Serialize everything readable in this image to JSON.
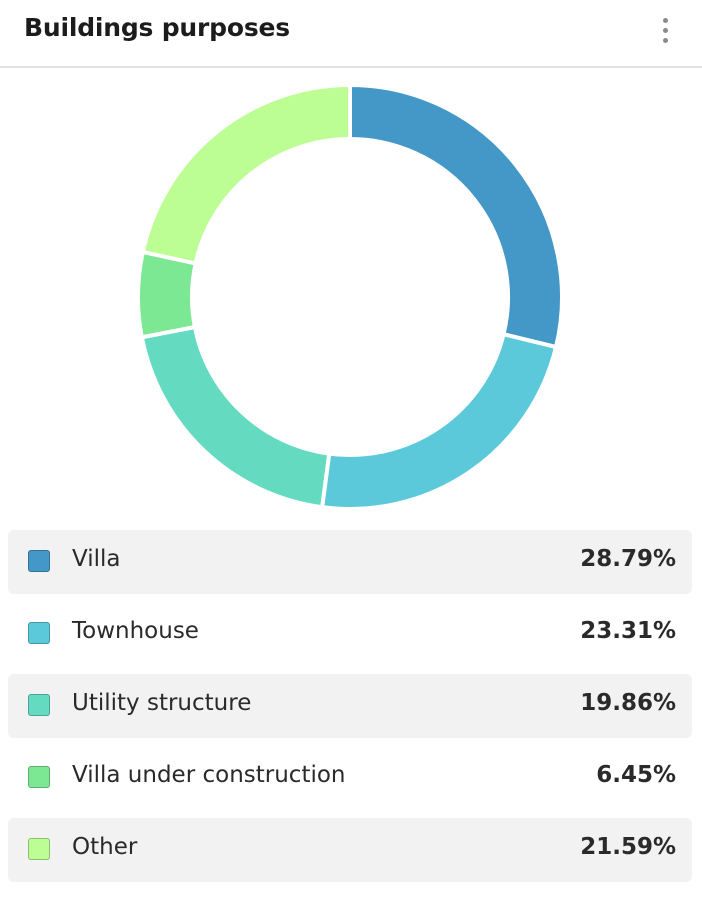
{
  "header": {
    "title": "Buildings purposes",
    "menu_icon": "more-vertical-icon"
  },
  "chart_data": {
    "type": "pie",
    "variant": "donut",
    "title": "Buildings purposes",
    "categories": [
      "Villa",
      "Townhouse",
      "Utility structure",
      "Villa under construction",
      "Other"
    ],
    "values": [
      28.79,
      23.31,
      19.86,
      6.45,
      21.59
    ],
    "labels": [
      "28.79%",
      "23.31%",
      "19.86%",
      "6.45%",
      "21.59%"
    ],
    "unit": "%",
    "colors": [
      "#4398c8",
      "#5bc9da",
      "#64dbc0",
      "#7ce894",
      "#bcfd94"
    ],
    "legend": "bottom"
  }
}
